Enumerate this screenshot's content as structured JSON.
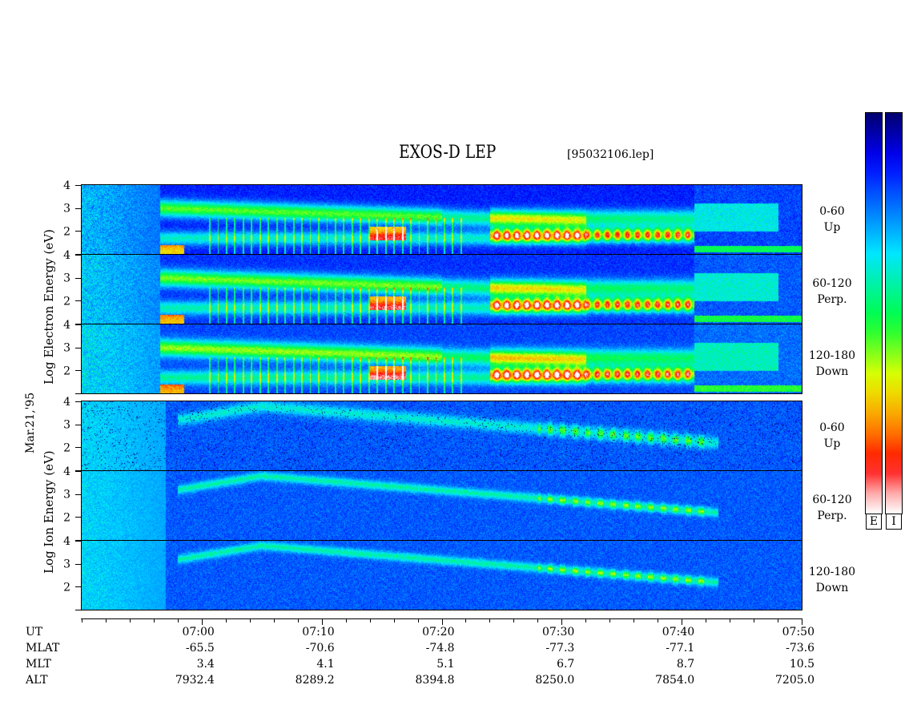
{
  "header": {
    "title": "EXOS-D LEP",
    "file": "[95032106.lep]"
  },
  "date_label": "Mar.21,'95",
  "groups": [
    {
      "label_line1": "Electron Energy (eV)",
      "label_line2": "Log",
      "label_text": "Log Electron Energy (eV)"
    },
    {
      "label_text": "Log Ion Energy (eV)"
    }
  ],
  "panel_labels": [
    {
      "l1": "0-60",
      "l2": "Up"
    },
    {
      "l1": "60-120",
      "l2": "Perp."
    },
    {
      "l1": "120-180",
      "l2": "Down"
    },
    {
      "l1": "0-60",
      "l2": "Up"
    },
    {
      "l1": "60-120",
      "l2": "Perp."
    },
    {
      "l1": "120-180",
      "l2": "Down"
    }
  ],
  "colorbar": {
    "labels": [
      "E",
      "I"
    ]
  },
  "orbit_table": {
    "row_labels": [
      "UT",
      "MLAT",
      "MLT",
      "ALT"
    ],
    "columns": [
      {
        "UT": "07:00",
        "MLAT": "-65.5",
        "MLT": "3.4",
        "ALT": "7932.4"
      },
      {
        "UT": "07:10",
        "MLAT": "-70.6",
        "MLT": "4.1",
        "ALT": "8289.2"
      },
      {
        "UT": "07:20",
        "MLAT": "-74.8",
        "MLT": "5.1",
        "ALT": "8394.8"
      },
      {
        "UT": "07:30",
        "MLAT": "-77.3",
        "MLT": "6.7",
        "ALT": "8250.0"
      },
      {
        "UT": "07:40",
        "MLAT": "-77.1",
        "MLT": "8.7",
        "ALT": "7854.0"
      },
      {
        "UT": "07:50",
        "MLAT": "-73.6",
        "MLT": "10.5",
        "ALT": "7205.0"
      }
    ]
  },
  "chart_data": {
    "type": "heatmap",
    "title": "EXOS-D LEP",
    "x_axis": {
      "label": "UT",
      "range": [
        "06:50",
        "07:50"
      ],
      "ticks": [
        "07:00",
        "07:10",
        "07:20",
        "07:30",
        "07:40",
        "07:50"
      ],
      "minor_tick_minutes": 2
    },
    "y_axis": {
      "label_electron": "Log Electron Energy (eV)",
      "label_ion": "Log Ion Energy (eV)",
      "range": [
        1,
        4
      ],
      "ticks": [
        "4",
        "3",
        "2"
      ]
    },
    "panels": [
      {
        "species": "Electron",
        "pitch_angle": "0-60",
        "direction": "Up"
      },
      {
        "species": "Electron",
        "pitch_angle": "60-120",
        "direction": "Perp."
      },
      {
        "species": "Electron",
        "pitch_angle": "120-180",
        "direction": "Down"
      },
      {
        "species": "Ion",
        "pitch_angle": "0-60",
        "direction": "Up"
      },
      {
        "species": "Ion",
        "pitch_angle": "60-120",
        "direction": "Perp."
      },
      {
        "species": "Ion",
        "pitch_angle": "120-180",
        "direction": "Down"
      }
    ],
    "colormap": [
      "#ffffff",
      "#ff0000",
      "#ffff00",
      "#00ff00",
      "#00ffff",
      "#0000ff",
      "#000080"
    ],
    "colorbar_labels": [
      "E",
      "I"
    ]
  }
}
